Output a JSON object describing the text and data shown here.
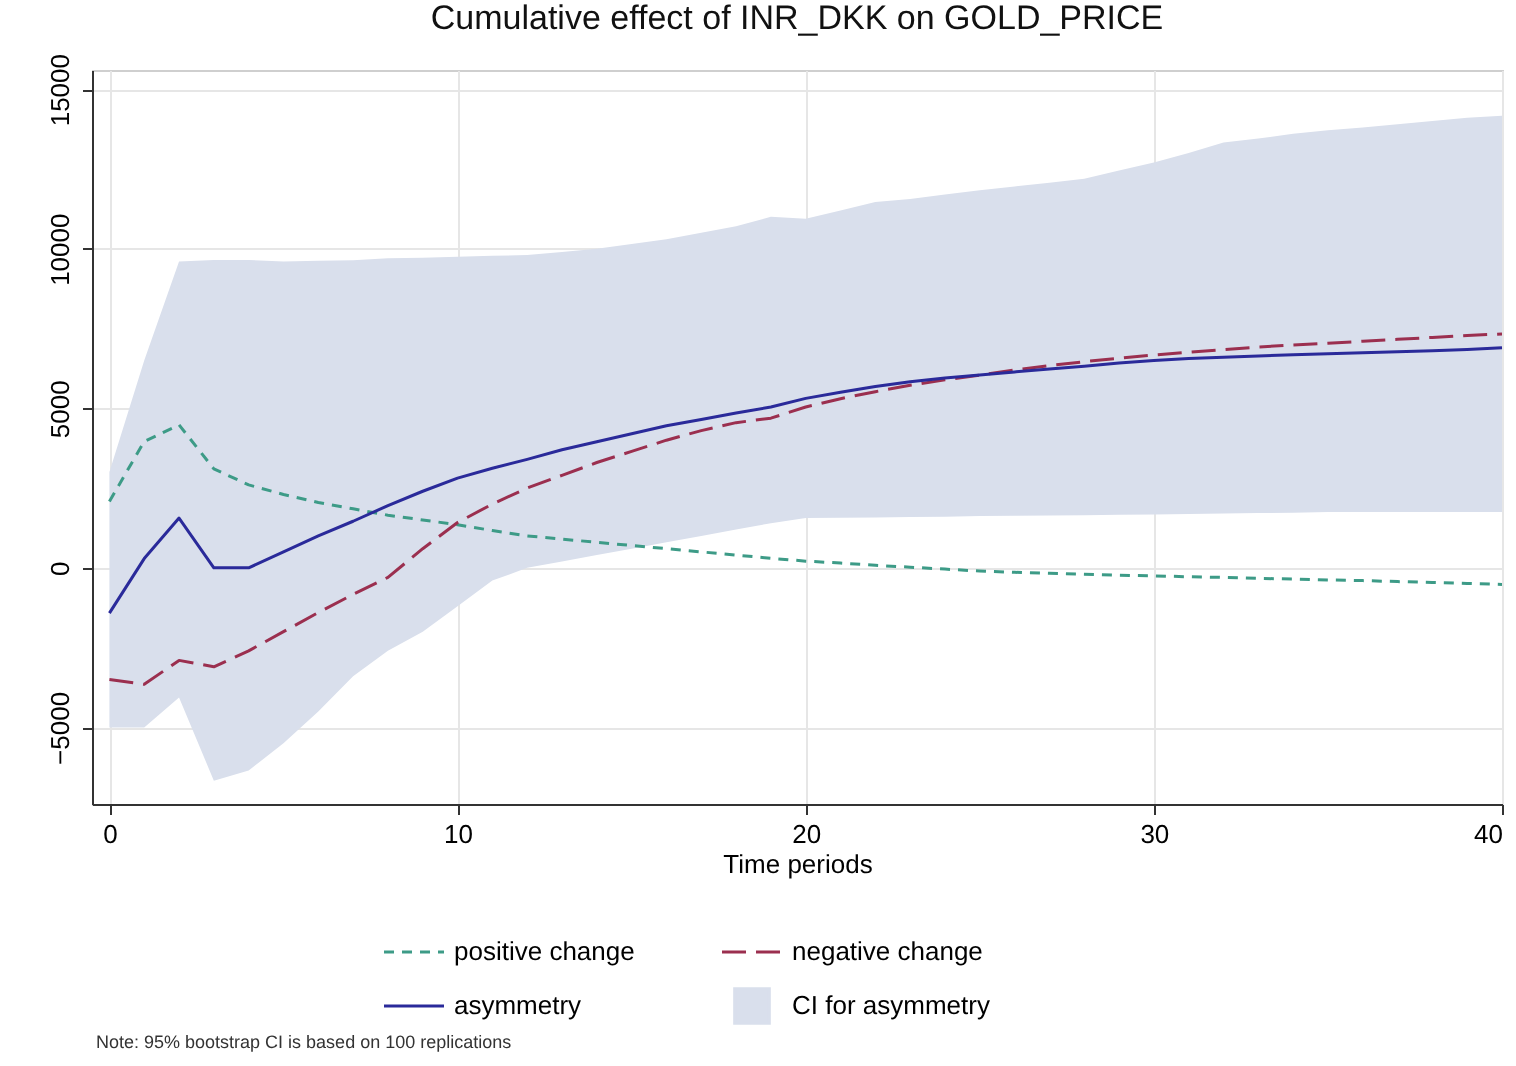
{
  "chart_data": {
    "type": "line",
    "title": "Cumulative effect of INR_DKK on GOLD_PRICE",
    "xlabel": "Time periods",
    "x": [
      0,
      1,
      2,
      3,
      4,
      5,
      6,
      7,
      8,
      9,
      10,
      11,
      12,
      13,
      14,
      15,
      16,
      17,
      18,
      19,
      20,
      21,
      22,
      23,
      24,
      25,
      26,
      27,
      28,
      29,
      30,
      31,
      32,
      33,
      34,
      35,
      36,
      37,
      38,
      39,
      40
    ],
    "xlim": [
      -0.5,
      40
    ],
    "xticks": [
      0,
      10,
      20,
      30,
      40
    ],
    "ylim": [
      -7400,
      15600
    ],
    "yticks": [
      -5000,
      0,
      5000,
      10000,
      15000
    ],
    "grid": true,
    "legend": "bottom",
    "marker": "none",
    "series": [
      {
        "name": "positive change",
        "color": "#3d9b87",
        "line_style": "dashed",
        "values": [
          2080,
          3960,
          4480,
          3100,
          2600,
          2300,
          2050,
          1850,
          1650,
          1500,
          1350,
          1170,
          1000,
          900,
          800,
          700,
          600,
          500,
          400,
          300,
          210,
          150,
          80,
          20,
          -40,
          -100,
          -140,
          -170,
          -200,
          -230,
          -250,
          -280,
          -300,
          -330,
          -350,
          -380,
          -400,
          -430,
          -460,
          -490,
          -520
        ]
      },
      {
        "name": "negative change",
        "color": "#9b2f4f",
        "line_style": "dashed",
        "values": [
          -3500,
          -3650,
          -2900,
          -3100,
          -2600,
          -2000,
          -1400,
          -830,
          -300,
          600,
          1420,
          2000,
          2500,
          2900,
          3300,
          3650,
          4000,
          4300,
          4550,
          4690,
          5040,
          5300,
          5520,
          5720,
          5890,
          6040,
          6200,
          6340,
          6460,
          6570,
          6670,
          6760,
          6840,
          6920,
          6980,
          7040,
          7100,
          7160,
          7220,
          7280,
          7330
        ]
      },
      {
        "name": "asymmetry",
        "color": "#2a2a9a",
        "line_style": "solid",
        "values": [
          -1420,
          290,
          1560,
          0,
          0,
          500,
          1000,
          1460,
          1950,
          2400,
          2810,
          3120,
          3400,
          3700,
          3950,
          4200,
          4450,
          4650,
          4850,
          5040,
          5310,
          5500,
          5680,
          5830,
          5950,
          6040,
          6140,
          6230,
          6320,
          6420,
          6500,
          6560,
          6600,
          6640,
          6680,
          6710,
          6740,
          6770,
          6800,
          6840,
          6900
        ]
      },
      {
        "name": "CI for asymmetry",
        "type": "area",
        "color": "#d9dfec",
        "values": [
          null,
          null,
          null,
          null,
          null,
          null,
          null,
          null,
          null,
          null,
          null,
          null,
          null,
          null,
          null,
          null,
          null,
          null,
          null,
          null,
          null,
          null,
          null,
          null,
          null,
          null,
          null,
          null,
          null,
          null,
          null,
          null,
          null,
          null,
          null,
          null,
          null,
          null,
          null,
          null,
          null
        ],
        "lower": [
          -5000,
          -5000,
          -4060,
          -6670,
          -6350,
          -5500,
          -4500,
          -3400,
          -2600,
          -2000,
          -1200,
          -400,
          0,
          200,
          400,
          600,
          800,
          1000,
          1200,
          1400,
          1560,
          1570,
          1580,
          1590,
          1600,
          1625,
          1630,
          1640,
          1650,
          1660,
          1670,
          1685,
          1700,
          1715,
          1730,
          1750,
          1750,
          1750,
          1750,
          1750,
          1750
        ],
        "upper": [
          3000,
          6500,
          9600,
          9650,
          9650,
          9600,
          9620,
          9640,
          9700,
          9720,
          9750,
          9780,
          9800,
          9900,
          10000,
          10150,
          10300,
          10500,
          10700,
          11000,
          10940,
          11200,
          11460,
          11560,
          11700,
          11830,
          11950,
          12070,
          12190,
          12450,
          12700,
          13000,
          13330,
          13450,
          13600,
          13710,
          13800,
          13900,
          14000,
          14100,
          14170
        ]
      }
    ],
    "annotations": [
      "Note: 95% bootstrap CI is based on 100 replications"
    ]
  }
}
